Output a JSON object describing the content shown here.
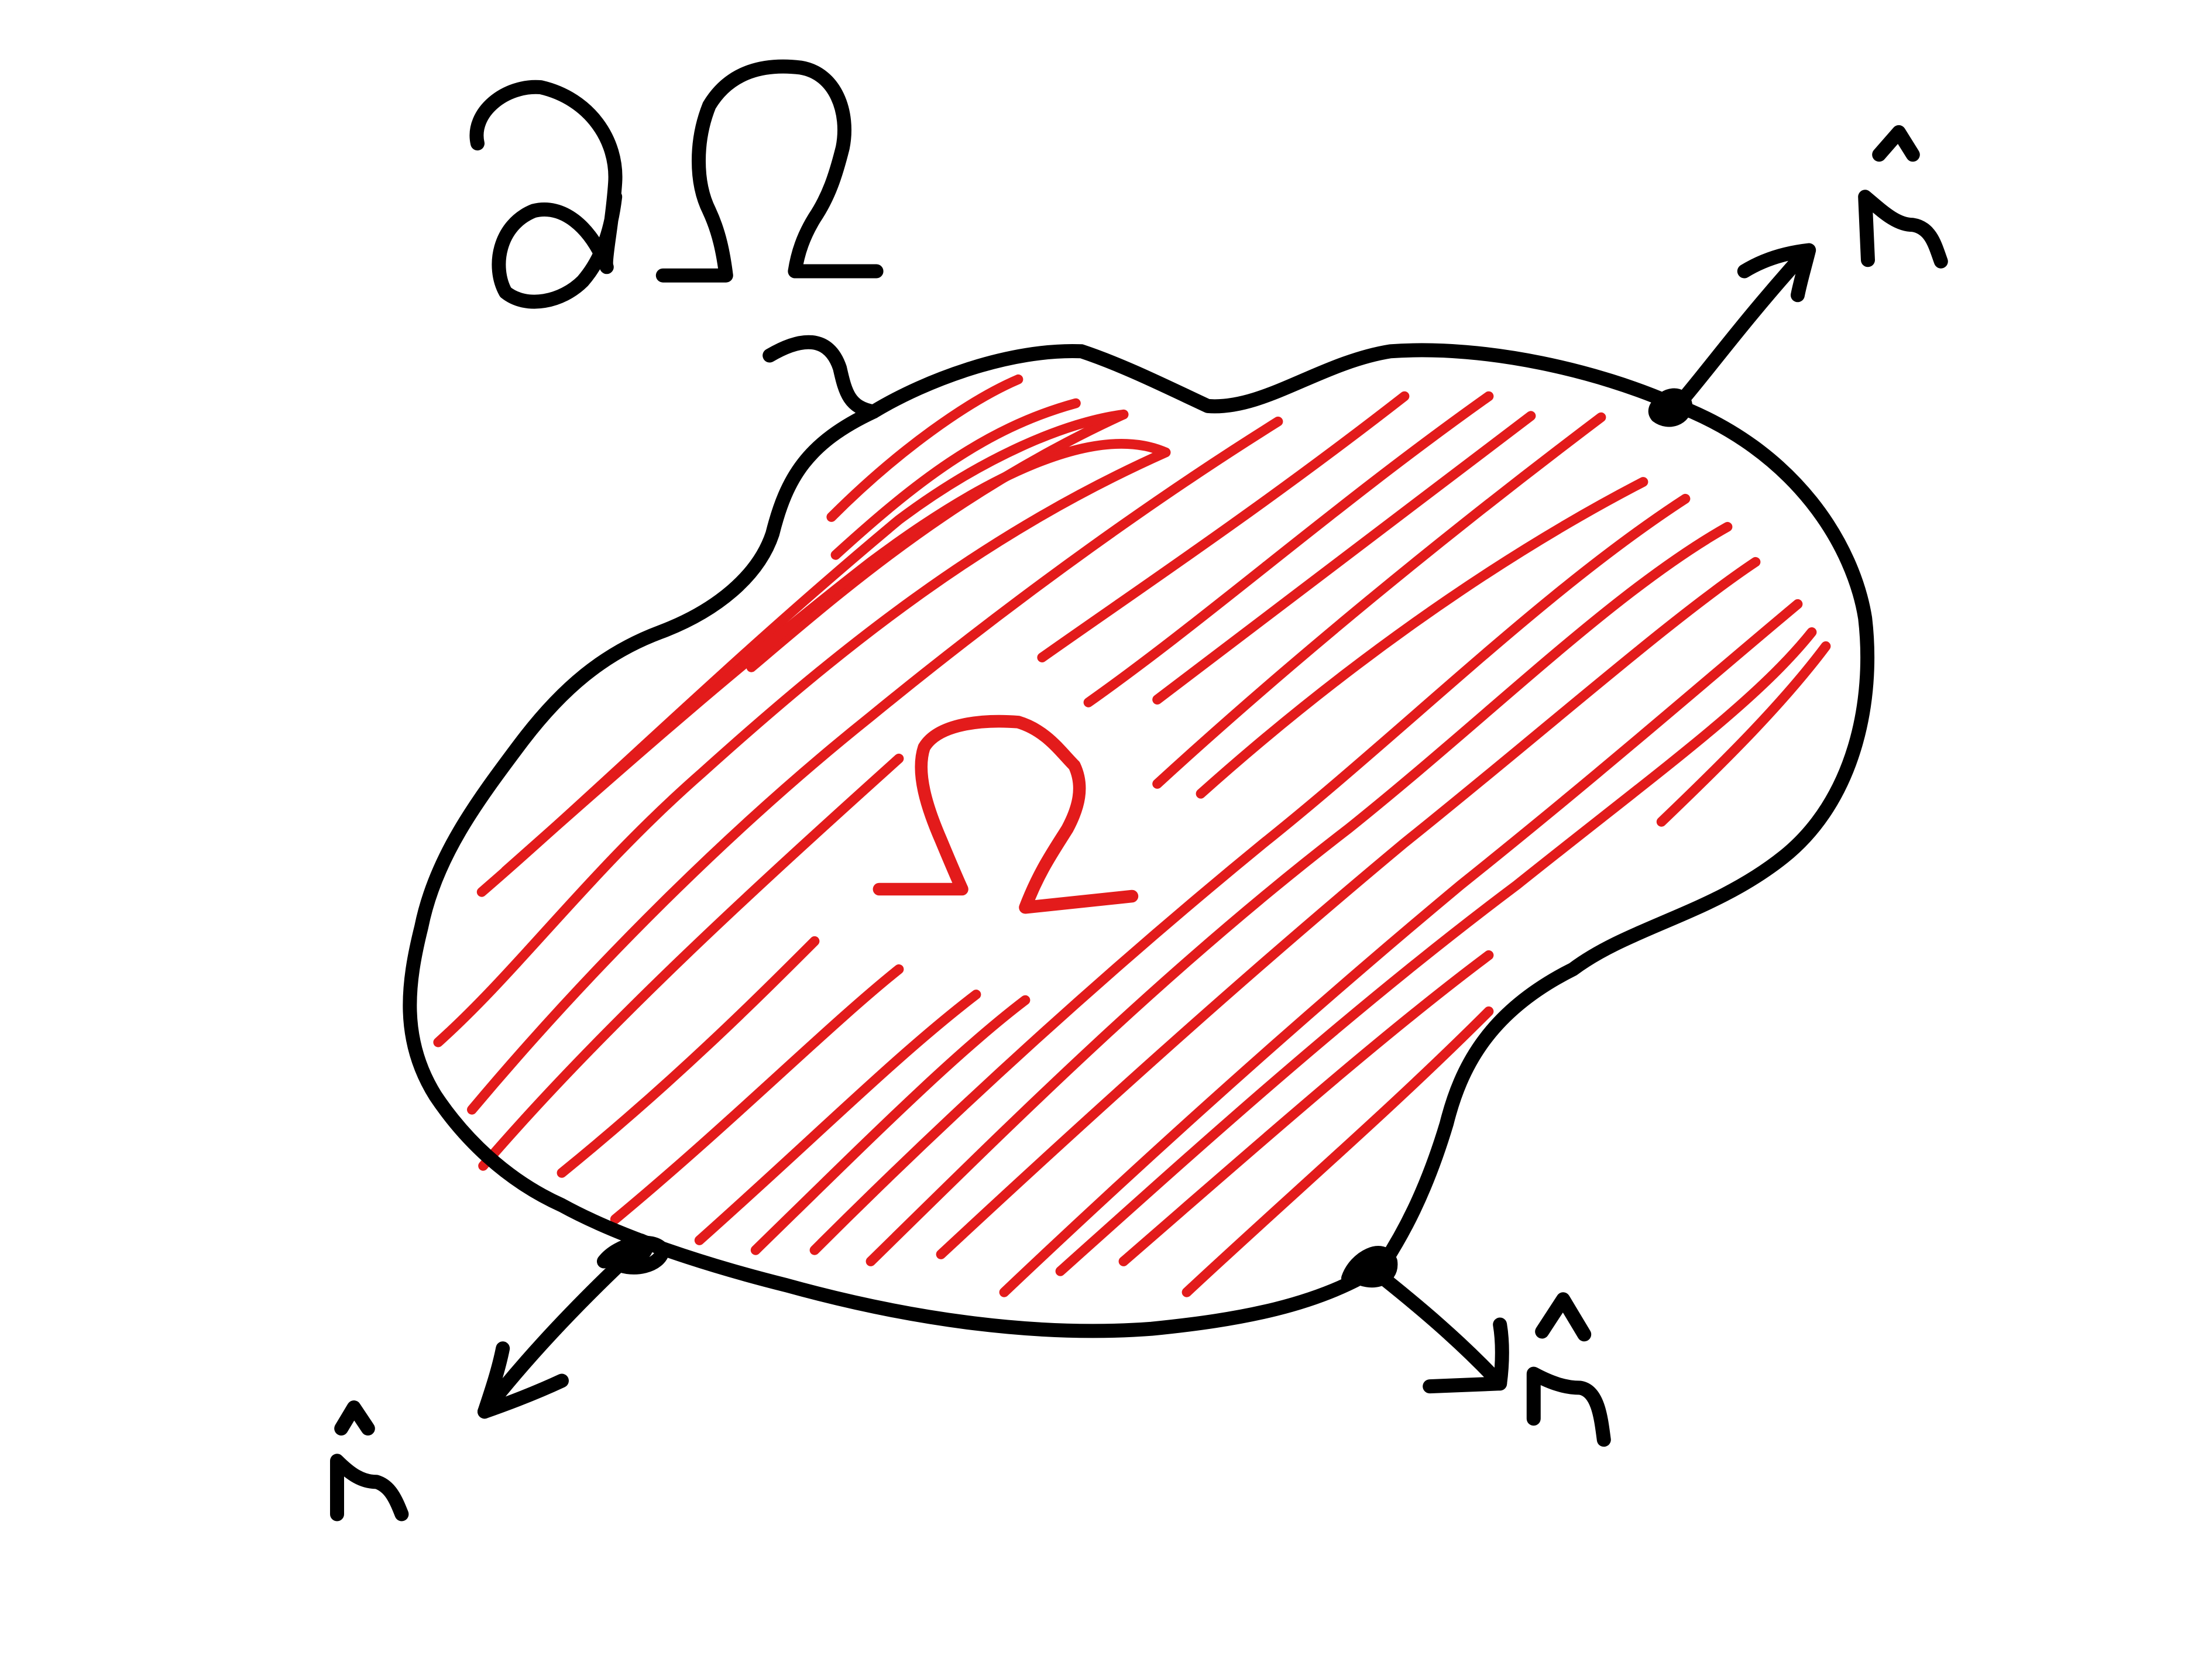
{
  "labels": {
    "boundary": "∂Ω",
    "region": "Ω",
    "normal_top_right": "n̂",
    "normal_bottom_left": "n̂",
    "normal_bottom_right": "n̂"
  },
  "colors": {
    "ink": "#000000",
    "region_hatch": "#e31b1b",
    "background": "#ffffff"
  }
}
